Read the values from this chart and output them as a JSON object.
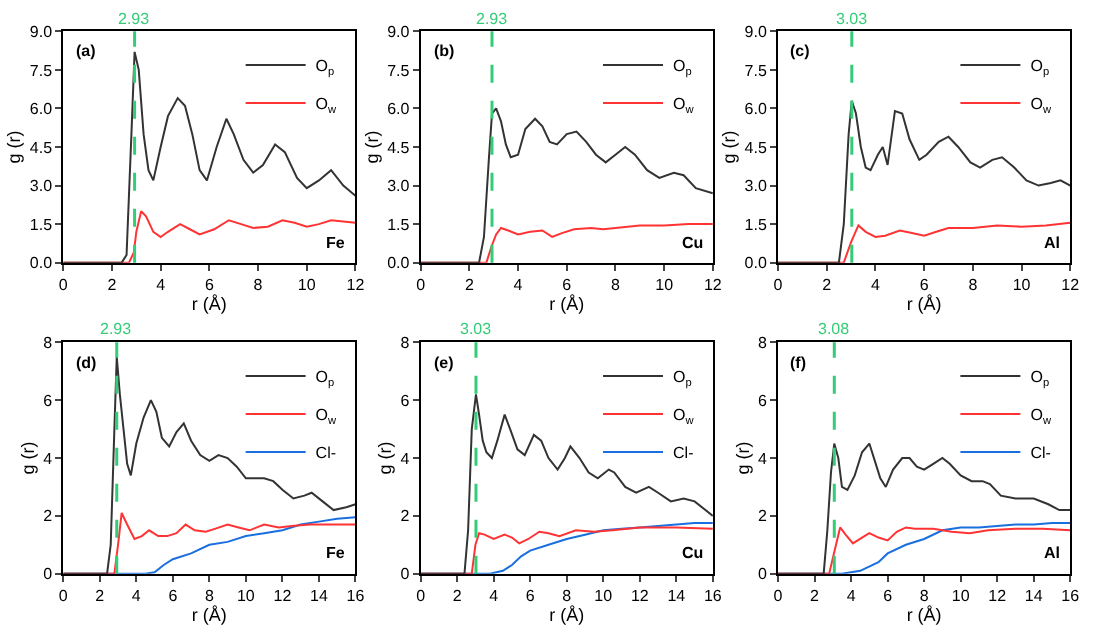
{
  "chart_data": [
    {
      "type": "line",
      "xlabel": "r (Å)",
      "ylabel": "g (r)",
      "legend": "top right",
      "annotations": [
        "(a)",
        "Fe"
      ],
      "xlim": [
        0,
        12
      ],
      "xticks": [
        0,
        2,
        4,
        6,
        8,
        10,
        12
      ],
      "ylim": [
        0,
        9
      ],
      "yticks": [
        {
          "value": 0,
          "label": "0.0"
        },
        {
          "value": 1.5,
          "label": "1.5"
        },
        {
          "value": 3,
          "label": "3.0"
        },
        {
          "value": 4.5,
          "label": "4.5"
        },
        {
          "value": 6,
          "label": "6.0"
        },
        {
          "value": 7.5,
          "label": "7.5"
        },
        {
          "value": 9,
          "label": "9.0"
        }
      ],
      "ref_lines": [
        {
          "axis": "x",
          "value": 2.93,
          "label": "2.93",
          "color": "#33cc77",
          "line_style": "dashed"
        }
      ],
      "series": [
        {
          "name": "O$_{p}$",
          "color": "#333333",
          "x": [
            0,
            2.4,
            2.6,
            2.8,
            2.93,
            3.1,
            3.3,
            3.5,
            3.7,
            4.0,
            4.3,
            4.7,
            5.0,
            5.3,
            5.6,
            5.9,
            6.3,
            6.7,
            7.0,
            7.4,
            7.8,
            8.2,
            8.7,
            9.1,
            9.6,
            10.0,
            10.5,
            11.0,
            11.5,
            12
          ],
          "values": [
            0,
            0,
            0.3,
            5,
            8.2,
            7.5,
            5,
            3.6,
            3.2,
            4.5,
            5.7,
            6.4,
            6.1,
            5.0,
            3.6,
            3.2,
            4.5,
            5.6,
            5.0,
            4.0,
            3.5,
            3.8,
            4.6,
            4.3,
            3.3,
            2.9,
            3.2,
            3.6,
            3.0,
            2.6
          ]
        },
        {
          "name": "O$_{w}$",
          "color": "#ff3333",
          "x": [
            0,
            2.7,
            2.9,
            3.0,
            3.2,
            3.4,
            3.7,
            4.0,
            4.3,
            4.8,
            5.2,
            5.6,
            6.2,
            6.8,
            7.3,
            7.8,
            8.4,
            9.0,
            9.5,
            10.0,
            10.5,
            11.0,
            12
          ],
          "values": [
            0,
            0,
            0.4,
            1.2,
            2.0,
            1.8,
            1.2,
            1.0,
            1.2,
            1.5,
            1.3,
            1.1,
            1.3,
            1.65,
            1.5,
            1.35,
            1.4,
            1.65,
            1.55,
            1.4,
            1.5,
            1.65,
            1.55
          ]
        }
      ]
    },
    {
      "type": "line",
      "xlabel": "r (Å)",
      "ylabel": "g (r)",
      "legend": "top right",
      "annotations": [
        "(b)",
        "Cu"
      ],
      "xlim": [
        0,
        12
      ],
      "xticks": [
        0,
        2,
        4,
        6,
        8,
        10,
        12
      ],
      "ylim": [
        0,
        9
      ],
      "yticks": [
        {
          "value": 0,
          "label": "0.0"
        },
        {
          "value": 1.5,
          "label": "1.5"
        },
        {
          "value": 3,
          "label": "3.0"
        },
        {
          "value": 4.5,
          "label": "4.5"
        },
        {
          "value": 6,
          "label": "6.0"
        },
        {
          "value": 7.5,
          "label": "7.5"
        },
        {
          "value": 9,
          "label": "9.0"
        }
      ],
      "ref_lines": [
        {
          "axis": "x",
          "value": 2.93,
          "label": "2.93",
          "color": "#33cc77",
          "line_style": "dashed"
        }
      ],
      "series": [
        {
          "name": "O$_{p}$",
          "color": "#333333",
          "x": [
            0,
            2.4,
            2.6,
            2.8,
            2.93,
            3.1,
            3.3,
            3.5,
            3.7,
            4.0,
            4.3,
            4.7,
            5.0,
            5.3,
            5.6,
            6.0,
            6.4,
            6.8,
            7.2,
            7.6,
            8.0,
            8.4,
            8.8,
            9.3,
            9.8,
            10.4,
            10.8,
            11.3,
            12
          ],
          "values": [
            0,
            0,
            1,
            4,
            5.8,
            6.0,
            5.5,
            4.6,
            4.1,
            4.2,
            5.2,
            5.6,
            5.3,
            4.7,
            4.6,
            5.0,
            5.1,
            4.7,
            4.2,
            3.9,
            4.2,
            4.5,
            4.2,
            3.6,
            3.3,
            3.5,
            3.4,
            2.9,
            2.7
          ]
        },
        {
          "name": "O$_{w}$",
          "color": "#ff3333",
          "x": [
            0,
            2.7,
            2.9,
            3.1,
            3.3,
            3.6,
            4.0,
            4.5,
            5.0,
            5.4,
            5.8,
            6.3,
            7.0,
            7.5,
            8.0,
            9.0,
            10.0,
            11.0,
            12
          ],
          "values": [
            0,
            0,
            0.6,
            1.1,
            1.35,
            1.25,
            1.1,
            1.2,
            1.25,
            1.0,
            1.15,
            1.3,
            1.35,
            1.3,
            1.35,
            1.45,
            1.45,
            1.5,
            1.5
          ]
        }
      ]
    },
    {
      "type": "line",
      "xlabel": "r (Å)",
      "ylabel": "g (r)",
      "legend": "top right",
      "annotations": [
        "(c)",
        "Al"
      ],
      "xlim": [
        0,
        12
      ],
      "xticks": [
        0,
        2,
        4,
        6,
        8,
        10,
        12
      ],
      "ylim": [
        0,
        9
      ],
      "yticks": [
        {
          "value": 0,
          "label": "0.0"
        },
        {
          "value": 1.5,
          "label": "1.5"
        },
        {
          "value": 3,
          "label": "3.0"
        },
        {
          "value": 4.5,
          "label": "4.5"
        },
        {
          "value": 6,
          "label": "6.0"
        },
        {
          "value": 7.5,
          "label": "7.5"
        },
        {
          "value": 9,
          "label": "9.0"
        }
      ],
      "ref_lines": [
        {
          "axis": "x",
          "value": 3.03,
          "label": "3.03",
          "color": "#33cc77",
          "line_style": "dashed"
        }
      ],
      "series": [
        {
          "name": "O$_{p}$",
          "color": "#333333",
          "x": [
            0,
            2.5,
            2.7,
            2.9,
            3.03,
            3.2,
            3.4,
            3.6,
            3.8,
            4.1,
            4.3,
            4.5,
            4.8,
            5.1,
            5.4,
            5.8,
            6.1,
            6.6,
            7.0,
            7.4,
            7.9,
            8.3,
            8.8,
            9.2,
            9.7,
            10.2,
            10.7,
            11.2,
            11.6,
            12
          ],
          "values": [
            0,
            0,
            1.5,
            5,
            6.3,
            5.8,
            4.5,
            3.7,
            3.6,
            4.2,
            4.5,
            3.8,
            5.9,
            5.8,
            4.8,
            4.0,
            4.2,
            4.7,
            4.9,
            4.5,
            3.9,
            3.7,
            4.0,
            4.1,
            3.7,
            3.2,
            3.0,
            3.1,
            3.2,
            3.0
          ]
        },
        {
          "name": "O$_{w}$",
          "color": "#ff3333",
          "x": [
            0,
            2.7,
            3.0,
            3.3,
            3.6,
            4.0,
            4.4,
            5.0,
            5.5,
            6.0,
            6.5,
            7.0,
            8.0,
            9.0,
            10.0,
            11.0,
            12
          ],
          "values": [
            0,
            0,
            0.8,
            1.45,
            1.2,
            1.0,
            1.05,
            1.25,
            1.15,
            1.05,
            1.2,
            1.35,
            1.35,
            1.45,
            1.4,
            1.45,
            1.55
          ]
        }
      ]
    },
    {
      "type": "line",
      "xlabel": "r (Å)",
      "ylabel": "g (r)",
      "legend": "top right",
      "annotations": [
        "(d)",
        "Fe"
      ],
      "xlim": [
        0,
        16
      ],
      "xticks": [
        0,
        2,
        4,
        6,
        8,
        10,
        12,
        14,
        16
      ],
      "ylim": [
        0,
        8
      ],
      "yticks": [
        0,
        2,
        4,
        6,
        8
      ],
      "ref_lines": [
        {
          "axis": "x",
          "value": 2.93,
          "label": "2.93",
          "color": "#33cc77",
          "line_style": "dashed"
        }
      ],
      "series": [
        {
          "name": "O$_{p}$",
          "color": "#333333",
          "x": [
            0,
            2.4,
            2.6,
            2.8,
            2.93,
            3.1,
            3.3,
            3.5,
            3.7,
            4.0,
            4.4,
            4.8,
            5.1,
            5.4,
            5.8,
            6.2,
            6.6,
            7.0,
            7.5,
            8.0,
            8.5,
            9.0,
            9.5,
            10.0,
            11.0,
            11.5,
            12.0,
            12.6,
            13.2,
            13.6,
            14.2,
            14.8,
            15.5,
            16
          ],
          "values": [
            0,
            0,
            1,
            5,
            7.5,
            6.2,
            5.0,
            3.8,
            3.4,
            4.5,
            5.4,
            6.0,
            5.6,
            4.7,
            4.4,
            4.9,
            5.2,
            4.6,
            4.1,
            3.9,
            4.1,
            4.0,
            3.7,
            3.3,
            3.3,
            3.2,
            2.9,
            2.6,
            2.7,
            2.8,
            2.5,
            2.2,
            2.3,
            2.4
          ]
        },
        {
          "name": "O$_{w}$",
          "color": "#ff3333",
          "x": [
            0,
            2.8,
            3.0,
            3.2,
            3.5,
            3.9,
            4.3,
            4.7,
            5.2,
            5.7,
            6.2,
            6.7,
            7.2,
            7.8,
            8.3,
            9.0,
            9.6,
            10.2,
            11.0,
            11.8,
            12.5,
            13.5,
            14.5,
            15.5,
            16
          ],
          "values": [
            0,
            0,
            1.0,
            2.1,
            1.7,
            1.2,
            1.3,
            1.5,
            1.3,
            1.3,
            1.4,
            1.7,
            1.5,
            1.45,
            1.55,
            1.7,
            1.6,
            1.5,
            1.7,
            1.6,
            1.65,
            1.7,
            1.7,
            1.7,
            1.7
          ]
        },
        {
          "name": "Cl-",
          "color": "#1a6fdf",
          "x": [
            0,
            4.5,
            5.0,
            5.5,
            6.0,
            7.0,
            8.0,
            9.0,
            10.0,
            11.0,
            12.0,
            13.0,
            14.0,
            15.0,
            16
          ],
          "values": [
            0,
            0,
            0.05,
            0.3,
            0.5,
            0.7,
            1.0,
            1.1,
            1.3,
            1.4,
            1.5,
            1.7,
            1.8,
            1.9,
            1.95
          ]
        }
      ]
    },
    {
      "type": "line",
      "xlabel": "r (Å)",
      "ylabel": "g (r)",
      "legend": "top right",
      "annotations": [
        "(e)",
        "Cu"
      ],
      "xlim": [
        0,
        16
      ],
      "xticks": [
        0,
        2,
        4,
        6,
        8,
        10,
        12,
        14,
        16
      ],
      "ylim": [
        0,
        8
      ],
      "yticks": [
        0,
        2,
        4,
        6,
        8
      ],
      "ref_lines": [
        {
          "axis": "x",
          "value": 3.03,
          "label": "3.03",
          "color": "#33cc77",
          "line_style": "dashed"
        }
      ],
      "series": [
        {
          "name": "O$_{p}$",
          "color": "#333333",
          "x": [
            0,
            2.4,
            2.6,
            2.8,
            3.03,
            3.2,
            3.4,
            3.6,
            3.9,
            4.2,
            4.6,
            4.9,
            5.3,
            5.7,
            6.2,
            6.6,
            7.0,
            7.5,
            7.9,
            8.2,
            8.7,
            9.2,
            9.7,
            10.3,
            10.6,
            11.2,
            11.8,
            12.5,
            13.0,
            13.7,
            14.4,
            15.0,
            16
          ],
          "values": [
            0,
            0,
            1.5,
            5,
            6.2,
            5.5,
            4.6,
            4.2,
            4.0,
            4.6,
            5.5,
            5.0,
            4.3,
            4.1,
            4.8,
            4.6,
            4.0,
            3.6,
            4.0,
            4.4,
            4.0,
            3.5,
            3.3,
            3.6,
            3.5,
            3.0,
            2.8,
            3.0,
            2.8,
            2.5,
            2.6,
            2.5,
            2.0
          ]
        },
        {
          "name": "O$_{w}$",
          "color": "#ff3333",
          "x": [
            0,
            2.8,
            3.0,
            3.2,
            3.5,
            4.0,
            4.6,
            5.0,
            5.4,
            5.9,
            6.5,
            7.0,
            7.6,
            8.5,
            9.5,
            10.5,
            12.0,
            14.0,
            16
          ],
          "values": [
            0,
            0,
            1.0,
            1.4,
            1.35,
            1.2,
            1.35,
            1.25,
            1.05,
            1.2,
            1.45,
            1.4,
            1.3,
            1.5,
            1.45,
            1.5,
            1.6,
            1.6,
            1.55
          ]
        },
        {
          "name": "Cl-",
          "color": "#1a6fdf",
          "x": [
            0,
            3.8,
            4.5,
            5.0,
            5.5,
            6.0,
            7.0,
            8.0,
            9.0,
            10.0,
            11.0,
            12.0,
            13.0,
            14.0,
            15.0,
            16
          ],
          "values": [
            0,
            0,
            0.1,
            0.3,
            0.6,
            0.8,
            1.0,
            1.2,
            1.35,
            1.5,
            1.55,
            1.6,
            1.65,
            1.7,
            1.75,
            1.75
          ]
        }
      ]
    },
    {
      "type": "line",
      "xlabel": "r (Å)",
      "ylabel": "g (r)",
      "legend": "top right",
      "annotations": [
        "(f)",
        "Al"
      ],
      "xlim": [
        0,
        16
      ],
      "xticks": [
        0,
        2,
        4,
        6,
        8,
        10,
        12,
        14,
        16
      ],
      "ylim": [
        0,
        8
      ],
      "yticks": [
        0,
        2,
        4,
        6,
        8
      ],
      "ref_lines": [
        {
          "axis": "x",
          "value": 3.08,
          "label": "3.08",
          "color": "#33cc77",
          "line_style": "dashed"
        }
      ],
      "series": [
        {
          "name": "O$_{p}$",
          "color": "#333333",
          "x": [
            0,
            2.5,
            2.7,
            2.9,
            3.08,
            3.3,
            3.5,
            3.8,
            4.2,
            4.6,
            5.0,
            5.3,
            5.6,
            5.9,
            6.3,
            6.8,
            7.2,
            7.6,
            8.0,
            8.5,
            9.0,
            9.4,
            10.0,
            10.6,
            11.2,
            11.6,
            12.2,
            13.0,
            14.0,
            14.8,
            15.4,
            16
          ],
          "values": [
            0,
            0,
            1.5,
            3.5,
            4.5,
            4.0,
            3.0,
            2.9,
            3.4,
            4.2,
            4.5,
            3.9,
            3.3,
            3.0,
            3.6,
            4.0,
            4.0,
            3.7,
            3.6,
            3.8,
            4.0,
            3.8,
            3.4,
            3.2,
            3.2,
            3.1,
            2.7,
            2.6,
            2.6,
            2.4,
            2.2,
            2.2
          ]
        },
        {
          "name": "O$_{w}$",
          "color": "#ff3333",
          "x": [
            0,
            2.8,
            3.1,
            3.4,
            3.7,
            4.1,
            4.6,
            5.0,
            5.5,
            6.0,
            6.5,
            7.0,
            7.5,
            8.5,
            9.5,
            10.5,
            11.5,
            13.0,
            14.5,
            16
          ],
          "values": [
            0,
            0,
            0.8,
            1.6,
            1.35,
            1.05,
            1.25,
            1.4,
            1.25,
            1.15,
            1.45,
            1.6,
            1.55,
            1.55,
            1.45,
            1.4,
            1.5,
            1.55,
            1.55,
            1.5
          ]
        },
        {
          "name": "Cl-",
          "color": "#1a6fdf",
          "x": [
            0,
            3.5,
            4.5,
            5.5,
            6.0,
            7.0,
            8.0,
            9.0,
            10.0,
            11.0,
            12.0,
            13.0,
            14.0,
            15.0,
            16
          ],
          "values": [
            0,
            0,
            0.1,
            0.4,
            0.7,
            1.0,
            1.2,
            1.5,
            1.6,
            1.6,
            1.65,
            1.7,
            1.7,
            1.75,
            1.75
          ]
        }
      ]
    }
  ]
}
